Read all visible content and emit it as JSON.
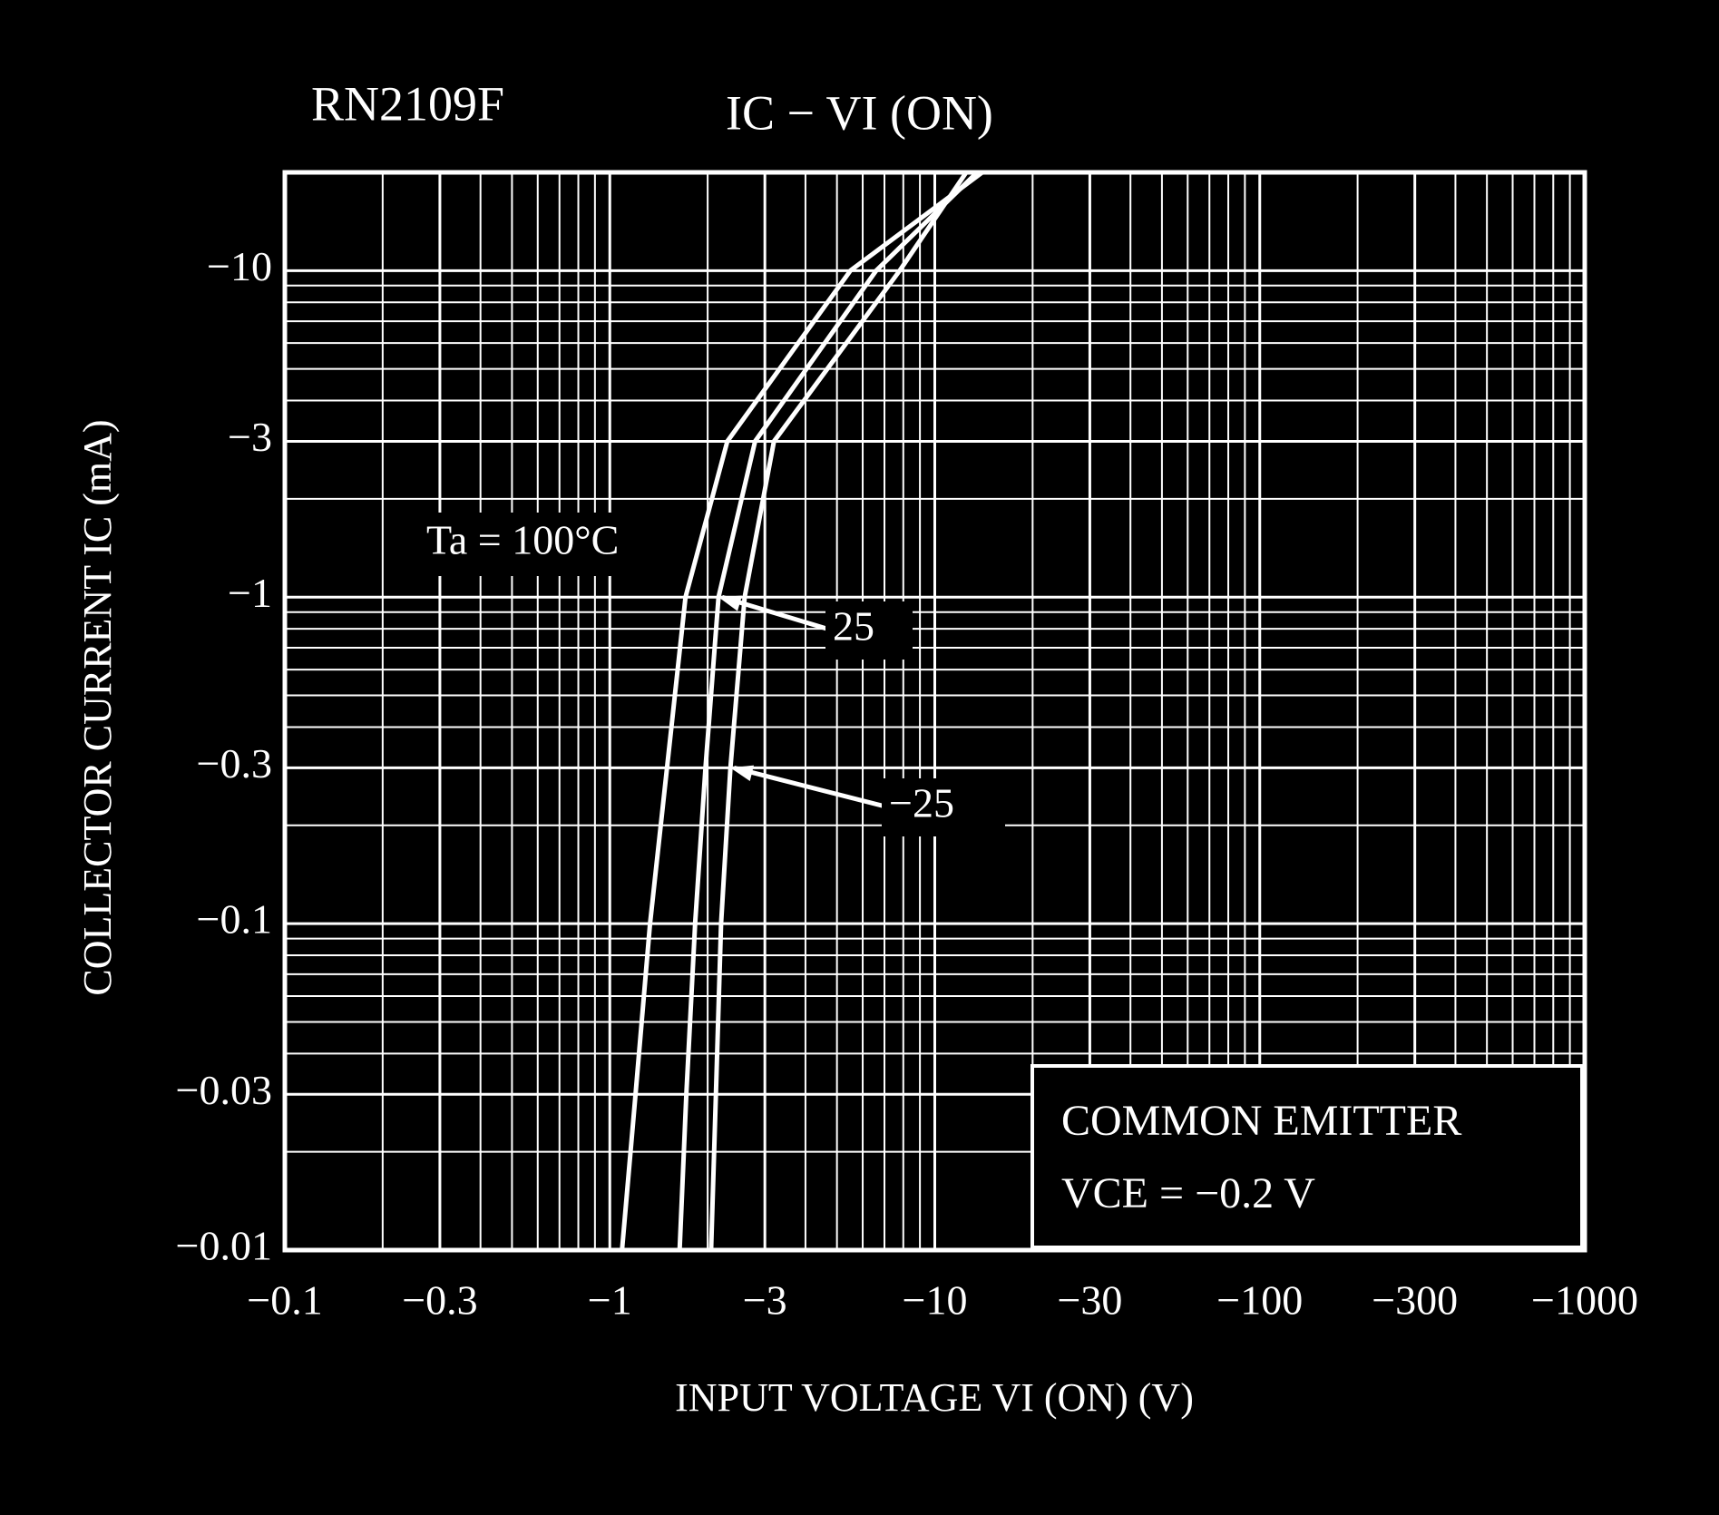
{
  "chart_data": {
    "type": "line",
    "title": "RN2109F",
    "subtitle": "IC − VI (ON)",
    "x_label": "INPUT VOLTAGE   VI (ON)   (V)",
    "y_label": "COLLECTOR CURRENT  IC  (mA)",
    "annotations": [
      "COMMON EMITTER",
      "VCE = −0.2 V"
    ],
    "log_x": true,
    "log_y": true,
    "grid": true,
    "xlim": [
      -0.1,
      -1000
    ],
    "ylim": [
      -0.01,
      -20
    ],
    "xticks": [
      {
        "value": -0.1,
        "label": "−0.1"
      },
      {
        "value": -0.3,
        "label": "−0.3"
      },
      {
        "value": -1,
        "label": "−1"
      },
      {
        "value": -3,
        "label": "−3"
      },
      {
        "value": -10,
        "label": "−10"
      },
      {
        "value": -30,
        "label": "−30"
      },
      {
        "value": -100,
        "label": "−100"
      },
      {
        "value": -300,
        "label": "−300"
      },
      {
        "value": -1000,
        "label": "−1000"
      }
    ],
    "yticks": [
      {
        "value": -10,
        "label": "−10"
      },
      {
        "value": -3,
        "label": "−3"
      },
      {
        "value": -1,
        "label": "−1"
      },
      {
        "value": -0.3,
        "label": "−0.3"
      },
      {
        "value": -0.1,
        "label": "−0.1"
      },
      {
        "value": -0.03,
        "label": "−0.03"
      },
      {
        "value": -0.01,
        "label": "−0.01"
      }
    ],
    "series": [
      {
        "name": "Ta = 100°C",
        "color": "#ffffff",
        "x": [
          -1.09,
          -1.2,
          -1.33,
          -1.5,
          -1.71,
          -2.3,
          -5.5,
          -14
        ],
        "values": [
          -0.01,
          -0.03,
          -0.1,
          -0.3,
          -1,
          -3,
          -10,
          -20
        ]
      },
      {
        "name": "25",
        "color": "#ffffff",
        "x": [
          -1.64,
          -1.72,
          -1.83,
          -1.97,
          -2.16,
          -2.8,
          -6.6,
          -13.5
        ],
        "values": [
          -0.01,
          -0.03,
          -0.1,
          -0.3,
          -1,
          -3,
          -10,
          -20
        ]
      },
      {
        "name": "−25",
        "color": "#ffffff",
        "x": [
          -2.05,
          -2.12,
          -2.2,
          -2.35,
          -2.6,
          -3.2,
          -7.8,
          -12.5
        ],
        "values": [
          -0.01,
          -0.03,
          -0.1,
          -0.3,
          -1,
          -3,
          -10,
          -20
        ]
      }
    ]
  }
}
